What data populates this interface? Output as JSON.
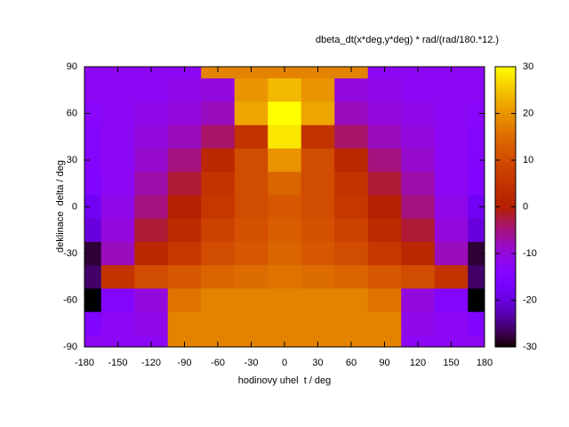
{
  "chart_data": {
    "type": "heatmap",
    "title": "dbeta_dt(x*deg,y*deg) * rad/(rad/180.*12.)",
    "x_label": "hodinovy uhel  t / deg",
    "y_label": "deklinace  delta / deg",
    "x": [
      -180,
      -150,
      -120,
      -90,
      -60,
      -30,
      0,
      30,
      60,
      90,
      120,
      150,
      180
    ],
    "y": [
      90,
      75,
      60,
      45,
      30,
      15,
      0,
      -15,
      -30,
      -45,
      -60,
      -75,
      -90
    ],
    "values": [
      [
        -12,
        -12,
        -12,
        -12,
        18,
        18,
        18,
        18,
        18,
        -12,
        -12,
        -12,
        -12
      ],
      [
        -12,
        -12,
        -12,
        -11,
        -10,
        20,
        24,
        20,
        -10,
        -11,
        -12,
        -12,
        -12
      ],
      [
        -13,
        -12,
        -11,
        -10,
        -8,
        22,
        30,
        22,
        -8,
        -10,
        -11,
        -12,
        -13
      ],
      [
        -14,
        -12,
        -10,
        -8,
        -4,
        5,
        28,
        5,
        -4,
        -8,
        -10,
        -12,
        -14
      ],
      [
        -14,
        -12,
        -9,
        -5,
        2,
        10,
        20,
        10,
        2,
        -5,
        -9,
        -12,
        -14
      ],
      [
        -15,
        -12,
        -7,
        -2,
        5,
        10,
        14,
        10,
        5,
        -2,
        -7,
        -12,
        -15
      ],
      [
        -18,
        -11,
        -5,
        0,
        6,
        10,
        12,
        10,
        6,
        0,
        -5,
        -11,
        -18
      ],
      [
        -20,
        -10,
        -2,
        3,
        8,
        11,
        13,
        11,
        8,
        3,
        -2,
        -10,
        -20
      ],
      [
        -28,
        -8,
        2,
        6,
        10,
        12,
        14,
        12,
        10,
        6,
        2,
        -8,
        -28
      ],
      [
        -26,
        5,
        10,
        12,
        14,
        15,
        16,
        15,
        14,
        12,
        10,
        5,
        -26
      ],
      [
        -30,
        -14,
        -10,
        16,
        18,
        18,
        18,
        18,
        18,
        16,
        -10,
        -14,
        -30
      ],
      [
        -15,
        -12,
        -11,
        18,
        18,
        18,
        18,
        18,
        18,
        18,
        -11,
        -12,
        -15
      ],
      [
        -12,
        -12,
        -12,
        18,
        18,
        18,
        18,
        18,
        18,
        18,
        -12,
        -12,
        -12
      ]
    ],
    "xlim": [
      -180,
      180
    ],
    "ylim": [
      -90,
      90
    ],
    "xticks": [
      -180,
      -150,
      -120,
      -90,
      -60,
      -30,
      0,
      30,
      60,
      90,
      120,
      150,
      180
    ],
    "yticks": [
      -90,
      -60,
      -30,
      0,
      30,
      60,
      90
    ],
    "cblim": [
      -30,
      30
    ],
    "cbticks": [
      -30,
      -20,
      -10,
      0,
      10,
      20,
      30
    ],
    "palette": "gnuplot"
  }
}
